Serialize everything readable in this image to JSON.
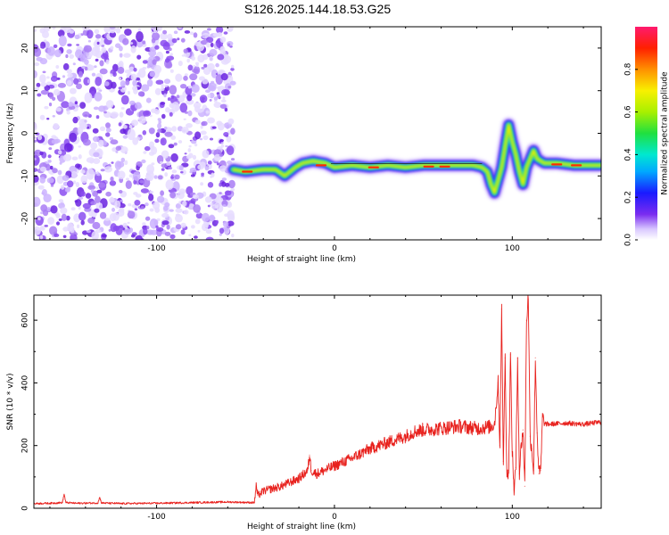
{
  "title": "S126.2025.144.18.53.G25",
  "chart_data": [
    {
      "type": "heatmap",
      "xlabel": "Height of straight line (km)",
      "ylabel": "Frequency (Hz)",
      "xlim": [
        -169,
        150
      ],
      "ylim": [
        -25,
        25
      ],
      "xticks": [
        -100,
        0,
        100
      ],
      "yticks": [
        -20,
        -10,
        0,
        10,
        20
      ],
      "colorbar": {
        "label": "Normalized spectral amplitude",
        "range": [
          0,
          1
        ],
        "ticks": [
          "0.0",
          "0.2",
          "0.4",
          "0.6",
          "0.8"
        ]
      },
      "noise_region_x": [
        -169,
        -57
      ],
      "ridge": {
        "x": [
          -57,
          -50,
          -40,
          -33,
          -28,
          -22,
          -18,
          -12,
          -5,
          0,
          10,
          20,
          30,
          40,
          50,
          60,
          70,
          78,
          83,
          86,
          88,
          90,
          92,
          94,
          96,
          98,
          100,
          102,
          104,
          106,
          108,
          110,
          112,
          114,
          118,
          125,
          135,
          150
        ],
        "y": [
          -8.5,
          -9,
          -8.5,
          -8.5,
          -10,
          -8,
          -7,
          -6.5,
          -7,
          -8,
          -7.5,
          -8,
          -7.5,
          -8,
          -7.5,
          -7.5,
          -7.5,
          -7.5,
          -8,
          -9,
          -12,
          -14,
          -11,
          -8,
          -3,
          2,
          -2,
          -5,
          -9,
          -12,
          -8,
          -6,
          -4,
          -6,
          -7,
          -7,
          -7.5,
          -7.5
        ]
      }
    },
    {
      "type": "line",
      "xlabel": "Height of straight line (km)",
      "ylabel": "SNR (10 * v/v)",
      "xlim": [
        -169,
        150
      ],
      "ylim": [
        0,
        680
      ],
      "xticks": [
        -100,
        0,
        100
      ],
      "yticks": [
        0,
        200,
        400,
        600
      ],
      "color": "#e8221e",
      "x": [
        -169,
        -160,
        -153,
        -152,
        -151,
        -145,
        -133,
        -132,
        -131,
        -120,
        -100,
        -80,
        -60,
        -45,
        -44,
        -43,
        -40,
        -30,
        -20,
        -15,
        -14,
        -13,
        -10,
        0,
        10,
        20,
        30,
        40,
        45,
        50,
        60,
        70,
        80,
        88,
        90,
        92,
        93,
        94,
        95,
        96,
        97,
        98,
        99,
        100,
        101,
        102,
        103,
        104,
        105,
        106,
        107,
        108,
        109,
        110,
        111,
        112,
        113,
        114,
        115,
        116,
        117,
        118,
        120,
        130,
        140,
        150
      ],
      "y": [
        15,
        16,
        18,
        45,
        18,
        16,
        17,
        35,
        17,
        15,
        16,
        18,
        20,
        18,
        70,
        40,
        55,
        70,
        95,
        120,
        170,
        120,
        110,
        135,
        160,
        190,
        210,
        230,
        245,
        250,
        255,
        262,
        255,
        260,
        270,
        400,
        200,
        635,
        150,
        480,
        100,
        120,
        490,
        180,
        60,
        130,
        480,
        110,
        200,
        250,
        70,
        600,
        680,
        230,
        190,
        120,
        480,
        240,
        110,
        120,
        290,
        270,
        268,
        272,
        268,
        275
      ]
    }
  ]
}
